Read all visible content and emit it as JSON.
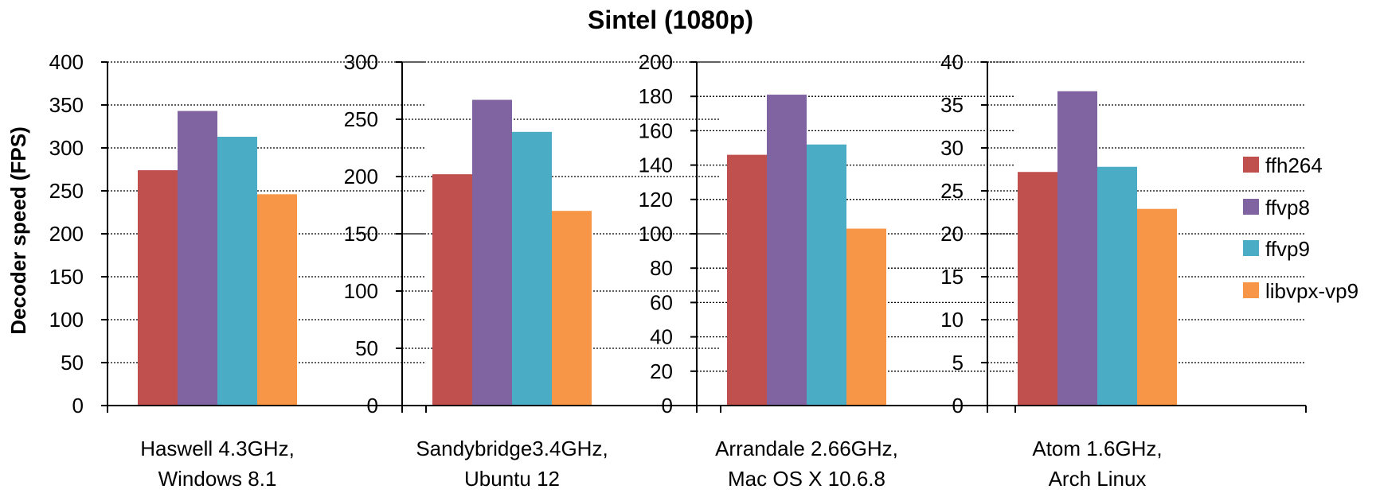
{
  "chart_data": {
    "type": "bar",
    "title": "Sintel (1080p)",
    "ylabel": "Decoder speed (FPS)",
    "grid": true,
    "legend_position": "right",
    "series_names": [
      "ffh264",
      "ffvp8",
      "ffvp9",
      "libvpx-vp9"
    ],
    "series_colors": [
      "#C0504D",
      "#8064A2",
      "#4BACC6",
      "#F79646"
    ],
    "panels": [
      {
        "category": [
          "Haswell 4.3GHz,",
          "Windows 8.1"
        ],
        "ylim": [
          0,
          400
        ],
        "yticks": [
          "0",
          "50",
          "100",
          "150",
          "200",
          "250",
          "300",
          "350",
          "400"
        ],
        "values": [
          274,
          343,
          313,
          246
        ]
      },
      {
        "category": [
          "Sandybridge3.4GHz,",
          "Ubuntu 12"
        ],
        "ylim": [
          0,
          300
        ],
        "yticks": [
          "0",
          "50",
          "100",
          "150",
          "200",
          "250",
          "300"
        ],
        "values": [
          202,
          267,
          239,
          170
        ]
      },
      {
        "category": [
          "Arrandale 2.66GHz,",
          "Mac OS X 10.6.8"
        ],
        "ylim": [
          0,
          200
        ],
        "yticks": [
          "0",
          "20",
          "40",
          "60",
          "80",
          "100",
          "120",
          "140",
          "160",
          "180",
          "200"
        ],
        "values": [
          146,
          181,
          152,
          103
        ]
      },
      {
        "category": [
          "Atom 1.6GHz,",
          "Arch Linux"
        ],
        "ylim": [
          0,
          40
        ],
        "yticks": [
          "0",
          "5",
          "10",
          "15",
          "20",
          "25",
          "30",
          "35",
          "40"
        ],
        "values": [
          27.2,
          36.6,
          27.8,
          22.9
        ]
      }
    ]
  }
}
